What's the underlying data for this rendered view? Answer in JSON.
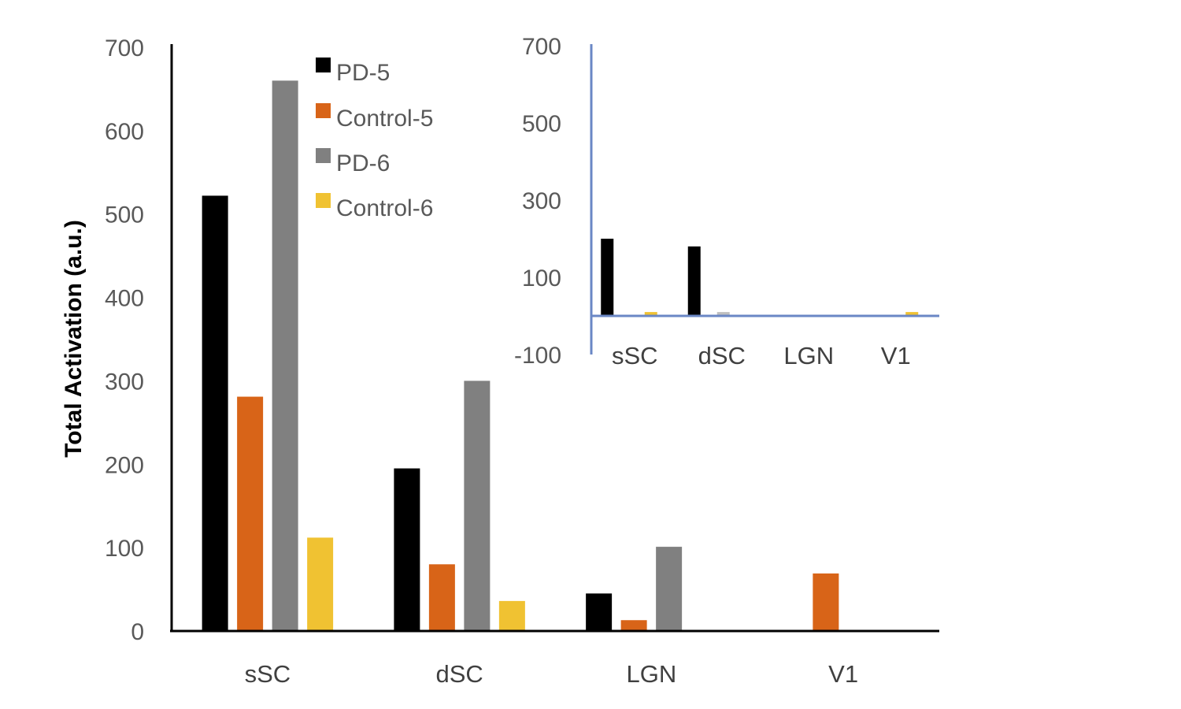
{
  "chart_data": [
    {
      "type": "bar",
      "categories": [
        "sSC",
        "dSC",
        "LGN",
        "V1"
      ],
      "series": [
        {
          "name": "PD-5",
          "color": "#000000",
          "values": [
            522,
            195,
            45,
            0
          ]
        },
        {
          "name": "Control-5",
          "color": "#D86418",
          "values": [
            281,
            80,
            13,
            69
          ]
        },
        {
          "name": "PD-6",
          "color": "#808080",
          "values": [
            660,
            300,
            101,
            0
          ]
        },
        {
          "name": "Control-6",
          "color": "#F0C232",
          "values": [
            112,
            36,
            0,
            0
          ]
        }
      ],
      "ylabel": "Total Activation  (a.u.)",
      "ylim": [
        0,
        700
      ],
      "yticks": [
        0,
        100,
        200,
        300,
        400,
        500,
        600,
        700
      ],
      "legend": "top-inside",
      "grid": false
    },
    {
      "type": "bar",
      "categories": [
        "sSC",
        "dSC",
        "LGN",
        "V1"
      ],
      "series": [
        {
          "name": "PD-5",
          "color": "#000000",
          "values": [
            200,
            180,
            0,
            0
          ]
        },
        {
          "name": "Control-5",
          "color": "#D86418",
          "values": [
            0,
            0,
            0,
            0
          ]
        },
        {
          "name": "PD-6",
          "color": "#BFBFBF",
          "values": [
            0,
            10,
            0,
            0
          ]
        },
        {
          "name": "Control-6",
          "color": "#F0C232",
          "values": [
            10,
            0,
            0,
            10
          ]
        }
      ],
      "ylim": [
        -100,
        700
      ],
      "yticks": [
        -100,
        100,
        300,
        500,
        700
      ],
      "axis_color": "#6A87C5",
      "grid": false
    }
  ]
}
